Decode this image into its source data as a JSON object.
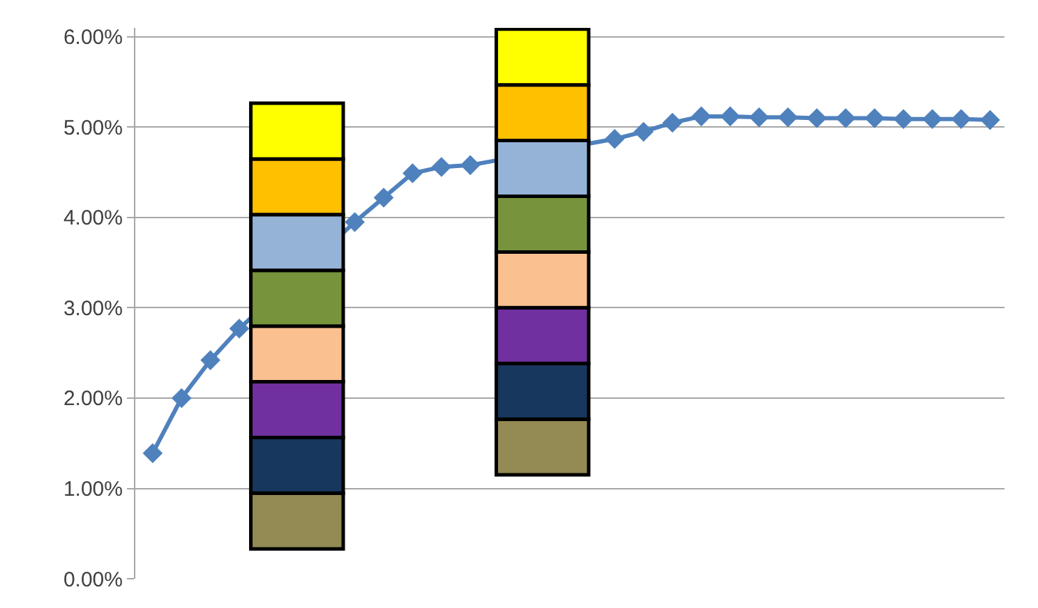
{
  "chart_data": {
    "type": "line",
    "categories": [
      null,
      null,
      null,
      null,
      null,
      null,
      null,
      null,
      null,
      null,
      null,
      null,
      null,
      null,
      null,
      null,
      null,
      null,
      null,
      null,
      null,
      null,
      null,
      null,
      null,
      null,
      null,
      null,
      null,
      null
    ],
    "ylim": [
      0,
      6.1
    ],
    "yticks": [
      {
        "value": 0,
        "label": "0.00%"
      },
      {
        "value": 1,
        "label": "1.00%"
      },
      {
        "value": 2,
        "label": "2.00%"
      },
      {
        "value": 3,
        "label": "3.00%"
      },
      {
        "value": 4,
        "label": "4.00%"
      },
      {
        "value": 5,
        "label": "5.00%"
      },
      {
        "value": 6,
        "label": "6.00%"
      }
    ],
    "tick_labels": "y",
    "grid": "y",
    "marker": "diamond",
    "series": [
      {
        "color": "#4f81bd",
        "values": [
          1.39,
          2.0,
          2.42,
          2.77,
          null,
          null,
          null,
          3.95,
          4.22,
          4.49,
          4.56,
          4.58,
          null,
          null,
          null,
          null,
          4.87,
          4.95,
          5.05,
          5.12,
          5.12,
          5.11,
          5.11,
          5.1,
          5.1,
          5.1,
          5.09,
          5.09,
          5.09,
          5.08
        ]
      }
    ]
  }
}
